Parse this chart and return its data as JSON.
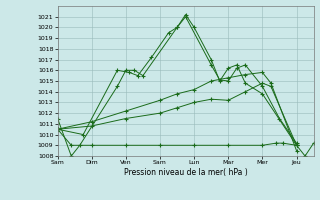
{
  "background_color": "#cce8e8",
  "grid_color": "#99bbbb",
  "line_color": "#1a6b1a",
  "ylim": [
    1008,
    1022
  ],
  "yticks": [
    1008,
    1009,
    1010,
    1011,
    1012,
    1013,
    1014,
    1015,
    1016,
    1017,
    1018,
    1019,
    1020,
    1021
  ],
  "xlabel": "Pression niveau de la mer( hPa )",
  "x_tick_pos": [
    0,
    2,
    4,
    6,
    8,
    10,
    12,
    14
  ],
  "x_labels": [
    "Sam",
    "Dim",
    "Ven",
    "Sam",
    "Lun",
    "Mar",
    "Mer",
    "Jeu"
  ],
  "s1_x": [
    0.0,
    1.5,
    3.5,
    4.2,
    4.7,
    5.5,
    6.5,
    7.0,
    7.5,
    8.0,
    9.0,
    9.5,
    10.0,
    10.5,
    11.0,
    12.0,
    14.0
  ],
  "s1_y": [
    1010.5,
    1010.0,
    1016.0,
    1015.8,
    1015.5,
    1017.2,
    1019.5,
    1020.0,
    1021.2,
    1020.0,
    1017.0,
    1015.0,
    1016.2,
    1016.5,
    1014.8,
    1013.8,
    1009.0
  ],
  "s2_x": [
    0.0,
    0.8,
    1.3,
    3.5,
    4.0,
    4.5,
    5.0,
    7.0,
    7.5,
    9.0,
    9.5,
    10.0,
    10.5,
    11.0,
    12.0,
    13.0,
    14.0
  ],
  "s2_y": [
    1011.5,
    1008.0,
    1009.0,
    1014.5,
    1016.0,
    1016.0,
    1015.5,
    1020.0,
    1021.0,
    1016.5,
    1015.1,
    1015.0,
    1016.2,
    1016.5,
    1014.5,
    1011.5,
    1009.2
  ],
  "s3_x": [
    0.0,
    2.0,
    4.0,
    6.0,
    7.0,
    8.0,
    9.0,
    10.0,
    11.0,
    12.0,
    12.5,
    14.0
  ],
  "s3_y": [
    1010.5,
    1011.2,
    1012.2,
    1013.2,
    1013.8,
    1014.2,
    1015.0,
    1015.3,
    1015.6,
    1015.8,
    1014.8,
    1008.5
  ],
  "s4_x": [
    0.0,
    2.0,
    4.0,
    6.0,
    7.0,
    8.0,
    9.0,
    10.0,
    11.0,
    12.0,
    12.5,
    14.0
  ],
  "s4_y": [
    1010.5,
    1010.8,
    1011.5,
    1012.0,
    1012.5,
    1013.0,
    1013.3,
    1013.2,
    1014.0,
    1014.8,
    1014.5,
    1009.0
  ],
  "s5_x": [
    0.0,
    0.8,
    2.0,
    4.0,
    6.0,
    8.0,
    10.0,
    12.0,
    12.8,
    13.2,
    14.0,
    14.5,
    15.0
  ],
  "s5_y": [
    1010.5,
    1009.0,
    1009.0,
    1009.0,
    1009.0,
    1009.0,
    1009.0,
    1009.0,
    1009.2,
    1009.2,
    1009.0,
    1008.0,
    1009.2
  ],
  "xlim": [
    0,
    15
  ]
}
